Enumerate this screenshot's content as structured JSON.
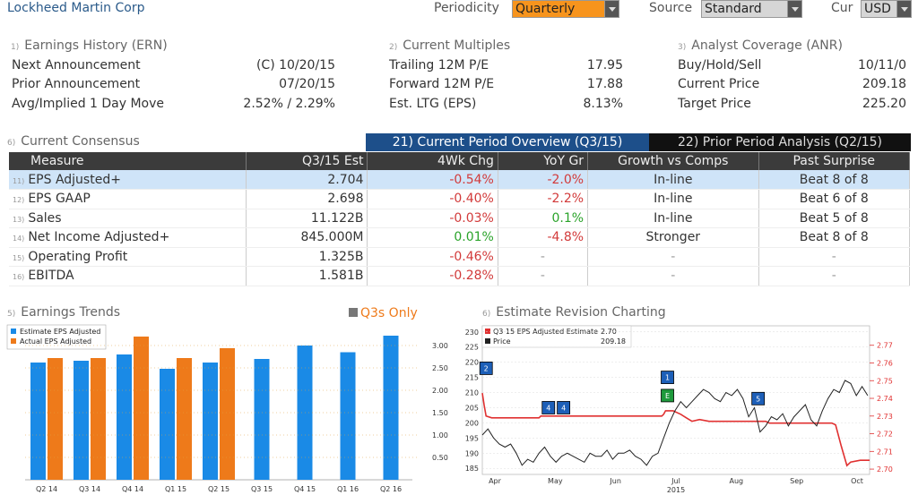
{
  "header": {
    "company": "Lockheed Martin Corp",
    "periodicity_label": "Periodicity",
    "periodicity_value": "Quarterly",
    "source_label": "Source",
    "source_value": "Standard",
    "cur_label": "Cur",
    "cur_value": "USD"
  },
  "earnings_history": {
    "num": "1)",
    "title": "Earnings History (ERN)",
    "rows": [
      {
        "label": "Next Announcement",
        "value": "(C)  10/20/15"
      },
      {
        "label": "Prior Announcement",
        "value": "07/20/15"
      },
      {
        "label": "Avg/Implied 1 Day Move",
        "value": "2.52% / 2.29%"
      }
    ]
  },
  "current_multiples": {
    "num": "2)",
    "title": "Current Multiples",
    "rows": [
      {
        "label": "Trailing 12M P/E",
        "value": "17.95"
      },
      {
        "label": "Forward 12M P/E",
        "value": "17.88"
      },
      {
        "label": "Est. LTG (EPS)",
        "value": "8.13%"
      }
    ]
  },
  "analyst_coverage": {
    "num": "3)",
    "title": "Analyst Coverage (ANR)",
    "rows": [
      {
        "label": "Buy/Hold/Sell",
        "value": "10/11/0"
      },
      {
        "label": "Current Price",
        "value": "209.18"
      },
      {
        "label": "Target Price",
        "value": "225.20"
      }
    ]
  },
  "consensus": {
    "num": "6)",
    "title": "Current Consensus",
    "tab_current": "21) Current Period Overview (Q3/15)",
    "tab_prior": "22) Prior Period Analysis (Q2/15)",
    "columns": [
      "Measure",
      "Q3/15 Est",
      "4Wk Chg",
      "YoY Gr",
      "Growth vs Comps",
      "Past Surprise"
    ],
    "rows": [
      {
        "idx": "11)",
        "measure": "EPS Adjusted+",
        "est": "2.704",
        "chg": "-0.54%",
        "chg_color": "red",
        "yoy": "-2.0%",
        "yoy_color": "red",
        "growth": "In-line",
        "past": "Beat 8 of 8"
      },
      {
        "idx": "12)",
        "measure": "EPS GAAP",
        "est": "2.698",
        "chg": "-0.40%",
        "chg_color": "red",
        "yoy": "-2.2%",
        "yoy_color": "red",
        "growth": "In-line",
        "past": "Beat 6 of 8"
      },
      {
        "idx": "13)",
        "measure": "Sales",
        "est": "11.122B",
        "chg": "-0.03%",
        "chg_color": "red",
        "yoy": "0.1%",
        "yoy_color": "green",
        "growth": "In-line",
        "past": "Beat 5 of 8"
      },
      {
        "idx": "14)",
        "measure": "Net Income Adjusted+",
        "est": "845.000M",
        "chg": "0.01%",
        "chg_color": "green",
        "yoy": "-4.8%",
        "yoy_color": "red",
        "growth": "Stronger",
        "past": "Beat 8 of 8"
      },
      {
        "idx": "15)",
        "measure": "Operating Profit",
        "est": "1.325B",
        "chg": "-0.46%",
        "chg_color": "red",
        "yoy": "-",
        "yoy_color": "dash",
        "growth": "-",
        "past": "-"
      },
      {
        "idx": "16)",
        "measure": "EBITDA",
        "est": "1.581B",
        "chg": "-0.28%",
        "chg_color": "red",
        "yoy": "-",
        "yoy_color": "dash",
        "growth": "-",
        "past": "-"
      }
    ]
  },
  "earnings_trends": {
    "num": "5)",
    "title": "Earnings Trends",
    "q3_only_label": "Q3s Only",
    "legend_estimate": "Estimate EPS Adjusted",
    "legend_actual": "Actual EPS Adjusted",
    "colors": {
      "estimate": "#1a8ae6",
      "actual": "#ee7a1a"
    }
  },
  "revision_chart": {
    "num": "6)",
    "title": "Estimate Revision Charting",
    "legend_estimate": "Q3 15 EPS Adjusted Estimate",
    "legend_estimate_value": "2.70",
    "legend_price": "Price",
    "legend_price_value": "209.18",
    "colors": {
      "estimate": "#e03030",
      "price": "#222222"
    }
  },
  "chart_data": [
    {
      "type": "bar",
      "categories": [
        "Q2 14",
        "Q3 14",
        "Q4 14",
        "Q1 15",
        "Q2 15",
        "Q3 15",
        "Q4 15",
        "Q1 16",
        "Q2 16"
      ],
      "series": [
        {
          "name": "Estimate EPS Adjusted",
          "values": [
            2.62,
            2.66,
            2.8,
            2.48,
            2.62,
            2.7,
            3.0,
            2.85,
            3.22
          ]
        },
        {
          "name": "Actual EPS Adjusted",
          "values": [
            2.72,
            2.72,
            3.2,
            2.72,
            2.94,
            null,
            null,
            null,
            null
          ]
        }
      ],
      "yticks": [
        "0.50",
        "1.00",
        "1.50",
        "2.00",
        "2.50",
        "3.00"
      ],
      "ylim": [
        0,
        3.4
      ],
      "legend": "top-left"
    },
    {
      "type": "line",
      "xlabels": [
        "Apr",
        "May",
        "Jun",
        "Jul",
        "Aug",
        "Sep",
        "Oct"
      ],
      "xsublabel": "2015",
      "left_ticks": [
        "185",
        "190",
        "195",
        "200",
        "205",
        "210",
        "215",
        "220",
        "225",
        "230"
      ],
      "right_ticks": [
        "2.70",
        "2.71",
        "2.72",
        "2.73",
        "2.74",
        "2.75",
        "2.76",
        "2.77"
      ],
      "left_ylim": [
        183,
        232
      ],
      "right_ylim": [
        2.697,
        2.781
      ],
      "x_domain": [
        0,
        205
      ],
      "series": [
        {
          "name": "Q3 15 EPS Adjusted Estimate",
          "axis": "right",
          "x": [
            0,
            1,
            2,
            5,
            30,
            31,
            70,
            95,
            96,
            97,
            101,
            105,
            108,
            111,
            115,
            120,
            125,
            150,
            152,
            185,
            187,
            190,
            193,
            195,
            200,
            205
          ],
          "y": [
            2.743,
            2.736,
            2.73,
            2.729,
            2.729,
            2.73,
            2.73,
            2.73,
            2.731,
            2.733,
            2.733,
            2.731,
            2.729,
            2.727,
            2.728,
            2.727,
            2.727,
            2.727,
            2.726,
            2.726,
            2.725,
            2.713,
            2.702,
            2.704,
            2.705,
            2.705
          ]
        },
        {
          "name": "Price",
          "axis": "left",
          "x": [
            0,
            3,
            6,
            9,
            12,
            15,
            18,
            21,
            24,
            27,
            30,
            33,
            36,
            39,
            42,
            45,
            48,
            51,
            54,
            57,
            60,
            63,
            66,
            69,
            72,
            75,
            78,
            81,
            84,
            87,
            90,
            93,
            96,
            99,
            102,
            105,
            108,
            111,
            114,
            117,
            120,
            123,
            126,
            129,
            132,
            135,
            138,
            141,
            144,
            147,
            150,
            153,
            156,
            159,
            162,
            165,
            168,
            171,
            174,
            177,
            180,
            183,
            186,
            189,
            192,
            195,
            198,
            201,
            204
          ],
          "y": [
            196,
            198,
            195,
            193,
            192,
            193,
            190,
            186,
            188,
            187,
            190,
            192,
            189,
            187,
            189,
            190,
            189,
            188,
            187,
            190,
            189,
            189,
            191,
            188,
            190,
            190,
            191,
            189,
            188,
            186,
            189,
            190,
            195,
            200,
            204,
            207,
            205,
            207,
            209,
            211,
            210,
            208,
            207,
            210,
            209,
            211,
            208,
            202,
            205,
            197,
            199,
            202,
            201,
            203,
            199,
            202,
            204,
            206,
            201,
            199,
            204,
            208,
            211,
            210,
            214,
            213,
            209,
            212,
            209
          ]
        }
      ],
      "markers": [
        {
          "label": "2",
          "x": 2,
          "y": 218,
          "color": "blue"
        },
        {
          "label": "4",
          "x": 35,
          "y": 205,
          "color": "blue"
        },
        {
          "label": "4",
          "x": 43,
          "y": 205,
          "color": "blue"
        },
        {
          "label": "1",
          "x": 98,
          "y": 215,
          "color": "blue"
        },
        {
          "label": "E",
          "x": 98,
          "y": 209,
          "color": "green"
        },
        {
          "label": "5",
          "x": 146,
          "y": 208,
          "color": "blue"
        }
      ]
    }
  ]
}
